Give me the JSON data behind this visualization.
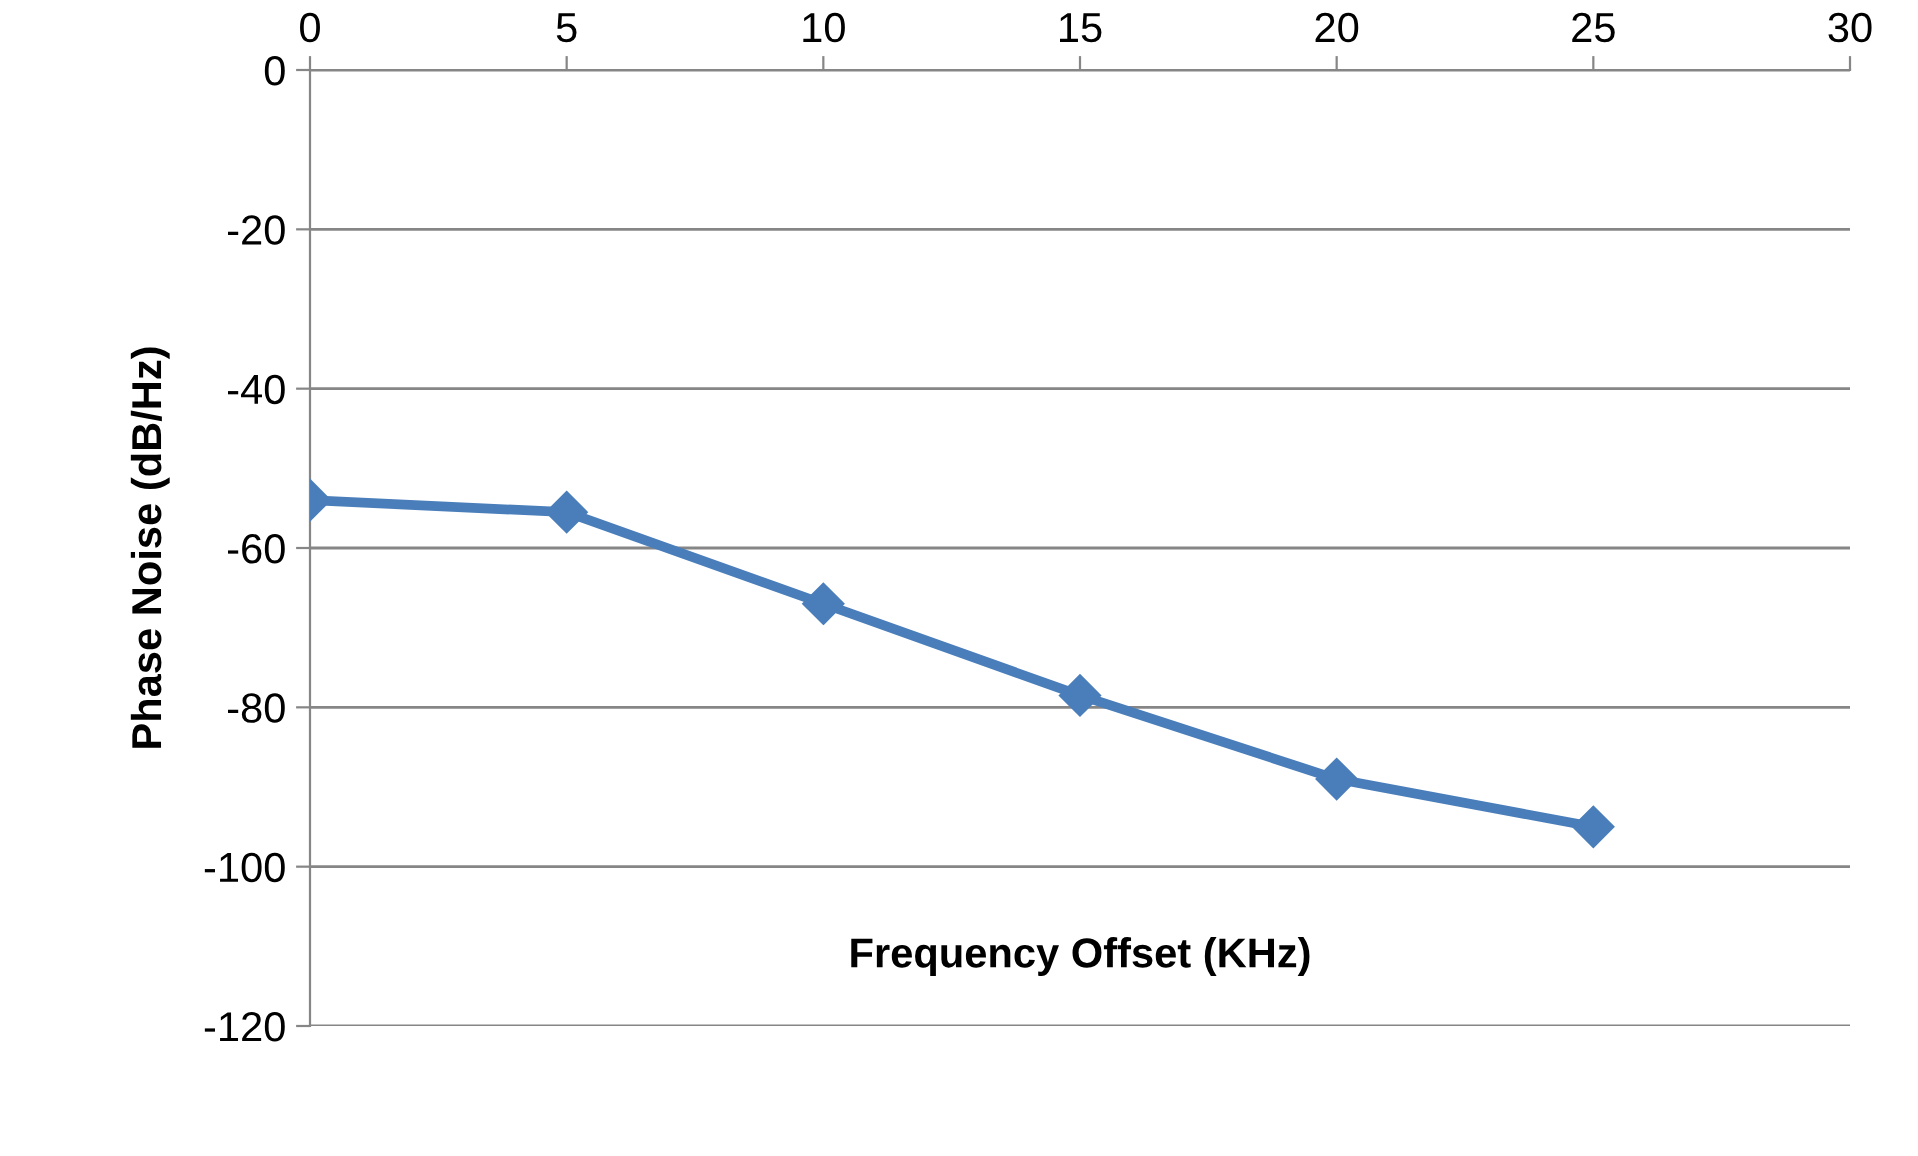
{
  "chart_data": {
    "type": "line",
    "xlabel": "Frequency Offset (KHz)",
    "ylabel": "Phase Noise (dB/Hz)",
    "x": [
      0,
      5,
      10,
      15,
      20,
      25
    ],
    "series": [
      {
        "color": "#4a7ebb",
        "values": [
          -54,
          -55.5,
          -67,
          -78.5,
          -89,
          -95
        ]
      }
    ],
    "xlim": [
      0,
      30
    ],
    "xticks": [
      0,
      5,
      10,
      15,
      20,
      25,
      30
    ],
    "ylim": [
      -120,
      0
    ],
    "yticks": [
      -120,
      -100,
      -80,
      -60,
      -40,
      -20,
      0
    ],
    "grid": "y",
    "marker": "diamond",
    "line_style": "solid",
    "legend": false
  }
}
